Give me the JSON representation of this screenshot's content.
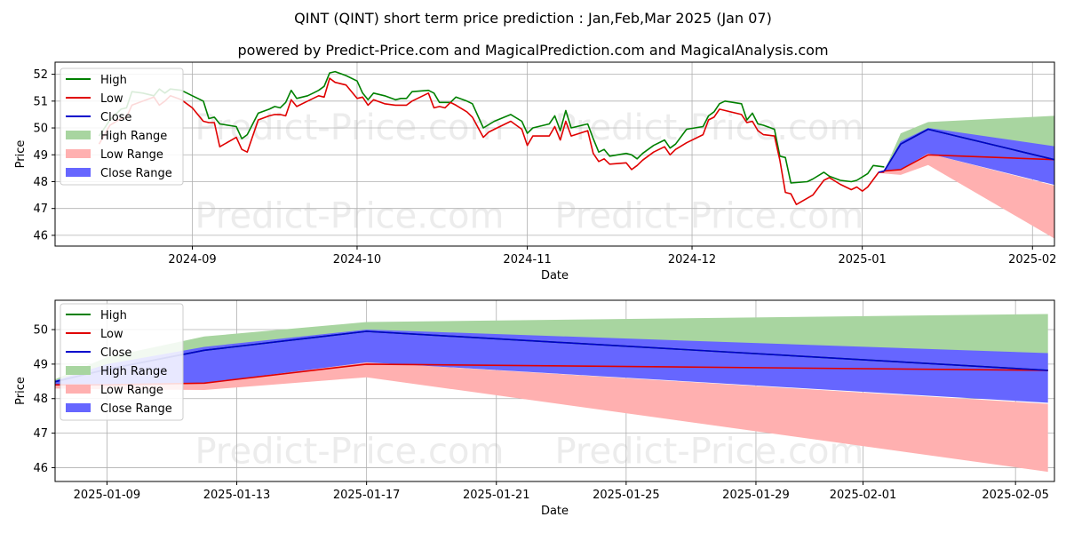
{
  "title": "QINT (QINT) short term price prediction : Jan,Feb,Mar 2025 (Jan 07)",
  "subtitle": "powered by Predict-Price.com and MagicalPrediction.com and MagicalAnalysis.com",
  "watermark": "Predict-Price.com",
  "colors": {
    "high": "#008000",
    "low": "#e00000",
    "close": "#0000cc",
    "high_range": "#a8d5a0",
    "low_range": "#ffb0b0",
    "close_range": "#6666ff"
  },
  "chart_data": [
    {
      "type": "line",
      "name": "history-and-forecast",
      "xlabel": "Date",
      "ylabel": "Price",
      "ylim": [
        45.6,
        52.45
      ],
      "xlim": [
        -25,
        157
      ],
      "x_unit": "days since 2024-09-01",
      "xtick_labels": [
        "2024-09",
        "2024-10",
        "2024-11",
        "2024-12",
        "2025-01",
        "2025-02"
      ],
      "xtick_values": [
        0,
        30,
        61,
        91,
        122,
        153
      ],
      "ytick_values": [
        46,
        47,
        48,
        49,
        50,
        51,
        52
      ],
      "legend": [
        "High",
        "Low",
        "Close",
        "High Range",
        "Low Range",
        "Close Range"
      ],
      "legend_position": "upper-left",
      "history": {
        "high": [
          [
            -17,
            49.7
          ],
          [
            -15,
            50.3
          ],
          [
            -13,
            50.7
          ],
          [
            -12,
            50.75
          ],
          [
            -11,
            51.35
          ],
          [
            -9,
            51.3
          ],
          [
            -7,
            51.2
          ],
          [
            -6,
            51.45
          ],
          [
            -5,
            51.3
          ],
          [
            -4,
            51.45
          ],
          [
            -2,
            51.4
          ],
          [
            0,
            51.2
          ],
          [
            2,
            51.0
          ],
          [
            3,
            50.35
          ],
          [
            4,
            50.4
          ],
          [
            5,
            50.15
          ],
          [
            8,
            50.05
          ],
          [
            9,
            49.6
          ],
          [
            10,
            49.75
          ],
          [
            12,
            50.55
          ],
          [
            14,
            50.7
          ],
          [
            15,
            50.8
          ],
          [
            16,
            50.75
          ],
          [
            17,
            50.95
          ],
          [
            18,
            51.4
          ],
          [
            19,
            51.1
          ],
          [
            21,
            51.2
          ],
          [
            22,
            51.3
          ],
          [
            23,
            51.4
          ],
          [
            24,
            51.55
          ],
          [
            25,
            52.05
          ],
          [
            26,
            52.1
          ],
          [
            28,
            51.95
          ],
          [
            30,
            51.75
          ],
          [
            31,
            51.3
          ],
          [
            32,
            51.05
          ],
          [
            33,
            51.3
          ],
          [
            35,
            51.2
          ],
          [
            37,
            51.05
          ],
          [
            38,
            51.1
          ],
          [
            39,
            51.1
          ],
          [
            40,
            51.35
          ],
          [
            43,
            51.4
          ],
          [
            44,
            51.3
          ],
          [
            45,
            50.95
          ],
          [
            46,
            50.95
          ],
          [
            47,
            50.95
          ],
          [
            48,
            51.15
          ],
          [
            50,
            51.0
          ],
          [
            51,
            50.9
          ],
          [
            53,
            50.0
          ],
          [
            55,
            50.25
          ],
          [
            58,
            50.5
          ],
          [
            60,
            50.25
          ],
          [
            61,
            49.8
          ],
          [
            62,
            50.0
          ],
          [
            65,
            50.15
          ],
          [
            66,
            50.45
          ],
          [
            67,
            49.9
          ],
          [
            68,
            50.65
          ],
          [
            69,
            50.0
          ],
          [
            72,
            50.15
          ],
          [
            73,
            49.6
          ],
          [
            74,
            49.1
          ],
          [
            75,
            49.2
          ],
          [
            76,
            48.95
          ],
          [
            79,
            49.05
          ],
          [
            80,
            49.0
          ],
          [
            81,
            48.85
          ],
          [
            82,
            49.05
          ],
          [
            84,
            49.35
          ],
          [
            86,
            49.55
          ],
          [
            87,
            49.25
          ],
          [
            88,
            49.4
          ],
          [
            90,
            49.95
          ],
          [
            93,
            50.05
          ],
          [
            94,
            50.45
          ],
          [
            95,
            50.6
          ],
          [
            96,
            50.9
          ],
          [
            97,
            51.0
          ],
          [
            100,
            50.9
          ],
          [
            101,
            50.3
          ],
          [
            102,
            50.55
          ],
          [
            103,
            50.15
          ],
          [
            104,
            50.1
          ],
          [
            106,
            49.95
          ],
          [
            107,
            48.95
          ],
          [
            108,
            48.9
          ],
          [
            109,
            47.95
          ],
          [
            112,
            48.0
          ],
          [
            113,
            48.1
          ],
          [
            115,
            48.35
          ],
          [
            116,
            48.2
          ],
          [
            118,
            48.05
          ],
          [
            120,
            48.0
          ],
          [
            121,
            48.05
          ],
          [
            123,
            48.3
          ],
          [
            124,
            48.6
          ],
          [
            126,
            48.55
          ]
        ],
        "low": [
          [
            -17,
            49.4
          ],
          [
            -15,
            50.1
          ],
          [
            -13,
            50.35
          ],
          [
            -12,
            50.4
          ],
          [
            -11,
            50.85
          ],
          [
            -9,
            51.0
          ],
          [
            -7,
            51.15
          ],
          [
            -6,
            50.85
          ],
          [
            -5,
            51.0
          ],
          [
            -4,
            51.2
          ],
          [
            -2,
            51.05
          ],
          [
            0,
            50.75
          ],
          [
            2,
            50.25
          ],
          [
            3,
            50.2
          ],
          [
            4,
            50.2
          ],
          [
            5,
            49.3
          ],
          [
            8,
            49.65
          ],
          [
            9,
            49.2
          ],
          [
            10,
            49.1
          ],
          [
            12,
            50.3
          ],
          [
            14,
            50.45
          ],
          [
            15,
            50.5
          ],
          [
            16,
            50.5
          ],
          [
            17,
            50.45
          ],
          [
            18,
            51.05
          ],
          [
            19,
            50.8
          ],
          [
            21,
            51.0
          ],
          [
            22,
            51.1
          ],
          [
            23,
            51.2
          ],
          [
            24,
            51.15
          ],
          [
            25,
            51.85
          ],
          [
            26,
            51.7
          ],
          [
            28,
            51.6
          ],
          [
            30,
            51.1
          ],
          [
            31,
            51.15
          ],
          [
            32,
            50.85
          ],
          [
            33,
            51.05
          ],
          [
            35,
            50.9
          ],
          [
            37,
            50.85
          ],
          [
            38,
            50.85
          ],
          [
            39,
            50.85
          ],
          [
            40,
            51.0
          ],
          [
            43,
            51.3
          ],
          [
            44,
            50.75
          ],
          [
            45,
            50.8
          ],
          [
            46,
            50.75
          ],
          [
            47,
            50.95
          ],
          [
            48,
            50.85
          ],
          [
            50,
            50.6
          ],
          [
            51,
            50.4
          ],
          [
            53,
            49.65
          ],
          [
            54,
            49.85
          ],
          [
            55,
            49.95
          ],
          [
            58,
            50.25
          ],
          [
            60,
            49.95
          ],
          [
            61,
            49.35
          ],
          [
            62,
            49.7
          ],
          [
            65,
            49.7
          ],
          [
            66,
            50.05
          ],
          [
            67,
            49.55
          ],
          [
            68,
            50.25
          ],
          [
            69,
            49.7
          ],
          [
            72,
            49.9
          ],
          [
            73,
            49.05
          ],
          [
            74,
            48.75
          ],
          [
            75,
            48.85
          ],
          [
            76,
            48.65
          ],
          [
            79,
            48.7
          ],
          [
            80,
            48.45
          ],
          [
            81,
            48.6
          ],
          [
            82,
            48.8
          ],
          [
            84,
            49.1
          ],
          [
            86,
            49.3
          ],
          [
            87,
            49.0
          ],
          [
            88,
            49.2
          ],
          [
            90,
            49.45
          ],
          [
            93,
            49.75
          ],
          [
            94,
            50.3
          ],
          [
            95,
            50.4
          ],
          [
            96,
            50.7
          ],
          [
            97,
            50.65
          ],
          [
            100,
            50.5
          ],
          [
            101,
            50.2
          ],
          [
            102,
            50.25
          ],
          [
            103,
            49.9
          ],
          [
            104,
            49.75
          ],
          [
            106,
            49.7
          ],
          [
            107,
            48.8
          ],
          [
            108,
            47.6
          ],
          [
            109,
            47.55
          ],
          [
            110,
            47.15
          ],
          [
            113,
            47.5
          ],
          [
            115,
            48.05
          ],
          [
            116,
            48.15
          ],
          [
            118,
            47.9
          ],
          [
            120,
            47.7
          ],
          [
            121,
            47.8
          ],
          [
            122,
            47.65
          ],
          [
            123,
            47.8
          ],
          [
            125,
            48.35
          ],
          [
            126,
            48.35
          ]
        ],
        "close": [
          [
            125,
            48.35
          ],
          [
            126,
            48.4
          ]
        ]
      },
      "forecast": {
        "days": [
          126,
          129,
          134,
          157
        ],
        "high": [
          48.4,
          49.4,
          49.95,
          48.82
        ],
        "low": [
          48.4,
          48.45,
          49.0,
          48.82
        ],
        "close": [
          48.4,
          49.4,
          49.95,
          48.82
        ],
        "high_range_upper": [
          48.4,
          49.8,
          50.22,
          50.45
        ],
        "high_range_lower": [
          48.4,
          49.4,
          49.95,
          48.82
        ],
        "low_range_upper": [
          48.4,
          48.45,
          49.05,
          47.85
        ],
        "low_range_lower": [
          48.3,
          48.25,
          48.62,
          45.88
        ],
        "close_range_upper": [
          48.4,
          49.5,
          50.0,
          49.32
        ],
        "close_range_lower": [
          48.4,
          48.45,
          49.05,
          47.88
        ]
      }
    },
    {
      "type": "line",
      "name": "forecast-zoom",
      "xlabel": "Date",
      "ylabel": "Price",
      "ylim": [
        45.6,
        50.85
      ],
      "xlim": [
        -1.6,
        29.2
      ],
      "x_unit": "days since 2025-01-09",
      "xtick_labels": [
        "2025-01-09",
        "2025-01-13",
        "2025-01-17",
        "2025-01-21",
        "2025-01-25",
        "2025-01-29",
        "2025-02-01",
        "2025-02-05"
      ],
      "xtick_values": [
        0,
        4,
        8,
        12,
        16,
        20,
        23.3,
        28
      ],
      "ytick_values": [
        46,
        47,
        48,
        49,
        50
      ],
      "legend": [
        "High",
        "Low",
        "Close",
        "High Range",
        "Low Range",
        "Close Range"
      ],
      "legend_position": "upper-left",
      "forecast": {
        "days": [
          -2,
          0,
          3,
          8,
          29
        ],
        "high": [
          48.4,
          48.85,
          49.4,
          49.95,
          48.82
        ],
        "low": [
          48.4,
          48.4,
          48.45,
          49.0,
          48.82
        ],
        "close": [
          48.4,
          48.85,
          49.4,
          49.95,
          48.82
        ],
        "high_range_upper": [
          48.4,
          49.2,
          49.8,
          50.22,
          50.45
        ],
        "high_range_lower": [
          48.4,
          48.85,
          49.4,
          49.95,
          48.82
        ],
        "low_range_upper": [
          48.4,
          48.4,
          48.45,
          49.05,
          47.85
        ],
        "low_range_lower": [
          48.3,
          48.27,
          48.25,
          48.62,
          45.88
        ],
        "close_range_upper": [
          48.4,
          49.0,
          49.5,
          50.0,
          49.32
        ],
        "close_range_lower": [
          48.4,
          48.4,
          48.45,
          49.05,
          47.88
        ]
      }
    }
  ]
}
